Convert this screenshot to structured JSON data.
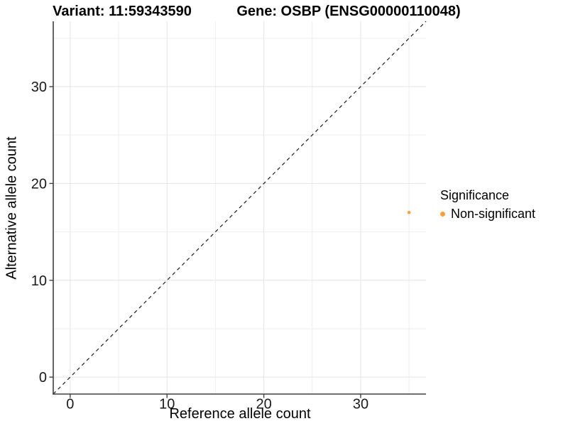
{
  "chart_data": {
    "type": "scatter",
    "title_left": "Variant: 11:59343590",
    "title_right": "Gene: OSBP (ENSG00000110048)",
    "xlabel": "Reference allele count",
    "ylabel": "Alternative allele count",
    "xlim": [
      -1.75,
      36.75
    ],
    "ylim": [
      -1.75,
      36.75
    ],
    "x_ticks": [
      0,
      10,
      20,
      30
    ],
    "y_ticks": [
      0,
      10,
      20,
      30
    ],
    "grid_step": 5,
    "grid_max": 35,
    "grid": "on",
    "identity_line": {
      "slope": 1,
      "intercept": 0,
      "style": "dashed"
    },
    "series": [
      {
        "name": "Non-significant",
        "color": "#F9A03C",
        "points": [
          {
            "x": 35,
            "y": 17
          }
        ]
      }
    ],
    "legend": {
      "title": "Significance",
      "position": "right",
      "items": [
        {
          "label": "Non-significant",
          "color": "#F9A03C"
        }
      ]
    }
  },
  "colors": {
    "background": "#FFFFFF",
    "grid_major": "#E4E4E4",
    "grid_minor": "#EEEEEE",
    "axis": "#404040",
    "tick_text": "#1A1A1A",
    "identity_line": "#1A1A1A",
    "point": "#F9A03C"
  }
}
